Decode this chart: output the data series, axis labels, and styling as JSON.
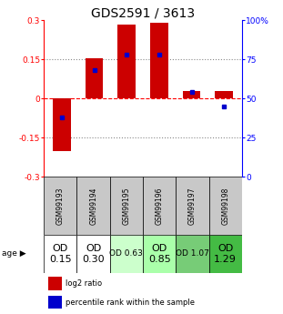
{
  "title": "GDS2591 / 3613",
  "samples": [
    "GSM99193",
    "GSM99194",
    "GSM99195",
    "GSM99196",
    "GSM99197",
    "GSM99198"
  ],
  "log2_ratios": [
    -0.2,
    0.155,
    0.285,
    0.29,
    0.03,
    0.03
  ],
  "percentile_ranks": [
    38,
    68,
    78,
    78,
    54,
    45
  ],
  "bar_color": "#cc0000",
  "dot_color": "#0000cc",
  "ylim": [
    -0.3,
    0.3
  ],
  "yticks_left": [
    -0.3,
    -0.15,
    0.0,
    0.15,
    0.3
  ],
  "ytick_labels_left": [
    "-0.3",
    "-0.15",
    "0",
    "0.15",
    "0.3"
  ],
  "yticks_right": [
    0,
    25,
    50,
    75,
    100
  ],
  "ytick_labels_right": [
    "0",
    "25",
    "50",
    "75",
    "100%"
  ],
  "age_labels": [
    "OD\n0.15",
    "OD\n0.30",
    "OD 0.63",
    "OD\n0.85",
    "OD 1.07",
    "OD\n1.29"
  ],
  "age_bg_colors": [
    "#ffffff",
    "#ffffff",
    "#ccffcc",
    "#aaffaa",
    "#77cc77",
    "#44bb44"
  ],
  "age_font_sizes": [
    8,
    8,
    6.5,
    8,
    6.5,
    8
  ],
  "gsm_bg_color": "#c8c8c8",
  "legend_red": "log2 ratio",
  "legend_blue": "percentile rank within the sample",
  "title_fontsize": 10,
  "bar_width": 0.55
}
